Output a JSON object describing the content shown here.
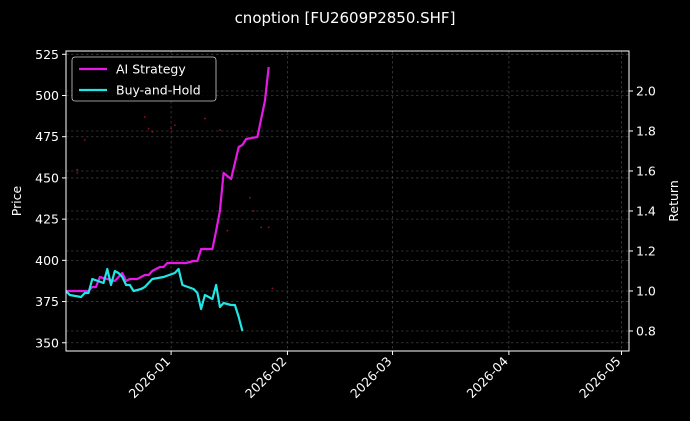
{
  "chart_data": {
    "type": "line",
    "title": "cnoption [FU2609P2850.SHF]",
    "ylabel": "Price",
    "y2label": "Return",
    "xlim": [
      "2025-12-04",
      "2026-05-03"
    ],
    "ylim": [
      345,
      527
    ],
    "y2lim": [
      0.7,
      2.2
    ],
    "x_ticks": [
      "2026-01",
      "2026-02",
      "2026-03",
      "2026-04",
      "2026-05"
    ],
    "y_ticks": [
      350,
      375,
      400,
      425,
      450,
      475,
      500,
      525
    ],
    "y2_ticks": [
      0.8,
      1.0,
      1.2,
      1.4,
      1.6,
      1.8,
      2.0
    ],
    "y2_tick_labels": [
      "0.8",
      "1.0",
      "1.2",
      "1.4",
      "1.6",
      "1.8",
      "2.0"
    ],
    "grid": true,
    "legend_position": "top-left",
    "series": [
      {
        "name": "AI Strategy",
        "axis": "right",
        "color": "#e619e6",
        "points": [
          [
            "2025-12-04",
            1.0
          ],
          [
            "2025-12-08",
            1.0
          ],
          [
            "2025-12-10",
            1.0
          ],
          [
            "2025-12-11",
            1.02
          ],
          [
            "2025-12-12",
            1.02
          ],
          [
            "2025-12-13",
            1.07
          ],
          [
            "2025-12-15",
            1.06
          ],
          [
            "2025-12-17",
            1.05
          ],
          [
            "2025-12-18",
            1.07
          ],
          [
            "2025-12-19",
            1.09
          ],
          [
            "2025-12-20",
            1.05
          ],
          [
            "2025-12-21",
            1.06
          ],
          [
            "2025-12-22",
            1.06
          ],
          [
            "2025-12-23",
            1.06
          ],
          [
            "2025-12-24",
            1.07
          ],
          [
            "2025-12-25",
            1.08
          ],
          [
            "2025-12-26",
            1.08
          ],
          [
            "2025-12-27",
            1.1
          ],
          [
            "2025-12-29",
            1.12
          ],
          [
            "2025-12-30",
            1.12
          ],
          [
            "2025-12-31",
            1.14
          ],
          [
            "2026-01-02",
            1.14
          ],
          [
            "2026-01-05",
            1.14
          ],
          [
            "2026-01-07",
            1.15
          ],
          [
            "2026-01-08",
            1.15
          ],
          [
            "2026-01-09",
            1.21
          ],
          [
            "2026-01-12",
            1.21
          ],
          [
            "2026-01-13",
            1.3
          ],
          [
            "2026-01-14",
            1.4
          ],
          [
            "2026-01-15",
            1.59
          ],
          [
            "2026-01-17",
            1.56
          ],
          [
            "2026-01-19",
            1.72
          ],
          [
            "2026-01-20",
            1.73
          ],
          [
            "2026-01-21",
            1.76
          ],
          [
            "2026-01-24",
            1.77
          ],
          [
            "2026-01-26",
            1.95
          ],
          [
            "2026-01-27",
            2.12
          ]
        ]
      },
      {
        "name": "Buy-and-Hold",
        "axis": "right",
        "color": "#22e6e6",
        "points": [
          [
            "2025-12-04",
            1.0
          ],
          [
            "2025-12-05",
            0.98
          ],
          [
            "2025-12-08",
            0.97
          ],
          [
            "2025-12-09",
            0.99
          ],
          [
            "2025-12-10",
            0.99
          ],
          [
            "2025-12-11",
            1.06
          ],
          [
            "2025-12-14",
            1.04
          ],
          [
            "2025-12-15",
            1.11
          ],
          [
            "2025-12-16",
            1.03
          ],
          [
            "2025-12-17",
            1.1
          ],
          [
            "2025-12-18",
            1.09
          ],
          [
            "2025-12-19",
            1.07
          ],
          [
            "2025-12-20",
            1.03
          ],
          [
            "2025-12-21",
            1.03
          ],
          [
            "2025-12-22",
            1.0
          ],
          [
            "2025-12-24",
            1.01
          ],
          [
            "2025-12-25",
            1.02
          ],
          [
            "2025-12-27",
            1.06
          ],
          [
            "2025-12-30",
            1.07
          ],
          [
            "2026-01-02",
            1.09
          ],
          [
            "2026-01-03",
            1.11
          ],
          [
            "2026-01-04",
            1.03
          ],
          [
            "2026-01-07",
            1.01
          ],
          [
            "2026-01-08",
            0.99
          ],
          [
            "2026-01-09",
            0.91
          ],
          [
            "2026-01-10",
            0.98
          ],
          [
            "2026-01-12",
            0.96
          ],
          [
            "2026-01-13",
            1.03
          ],
          [
            "2026-01-14",
            0.92
          ],
          [
            "2026-01-15",
            0.94
          ],
          [
            "2026-01-17",
            0.93
          ],
          [
            "2026-01-18",
            0.93
          ],
          [
            "2026-01-19",
            0.87
          ],
          [
            "2026-01-20",
            0.8
          ]
        ]
      },
      {
        "name": "",
        "axis": "left",
        "color": "#b01025",
        "style": "faint-dots",
        "points": [
          [
            "2025-12-07",
            453
          ],
          [
            "2025-12-07",
            455
          ],
          [
            "2025-12-09",
            473
          ],
          [
            "2025-12-25",
            487
          ],
          [
            "2025-12-26",
            480
          ],
          [
            "2025-12-27",
            478
          ],
          [
            "2026-01-01",
            480
          ],
          [
            "2026-01-02",
            482
          ],
          [
            "2026-01-10",
            486
          ],
          [
            "2026-01-14",
            479
          ],
          [
            "2026-01-16",
            418
          ],
          [
            "2026-01-22",
            438
          ],
          [
            "2026-01-23",
            430
          ],
          [
            "2026-01-25",
            420
          ],
          [
            "2026-01-27",
            420
          ],
          [
            "2026-01-28",
            383
          ]
        ]
      }
    ]
  }
}
